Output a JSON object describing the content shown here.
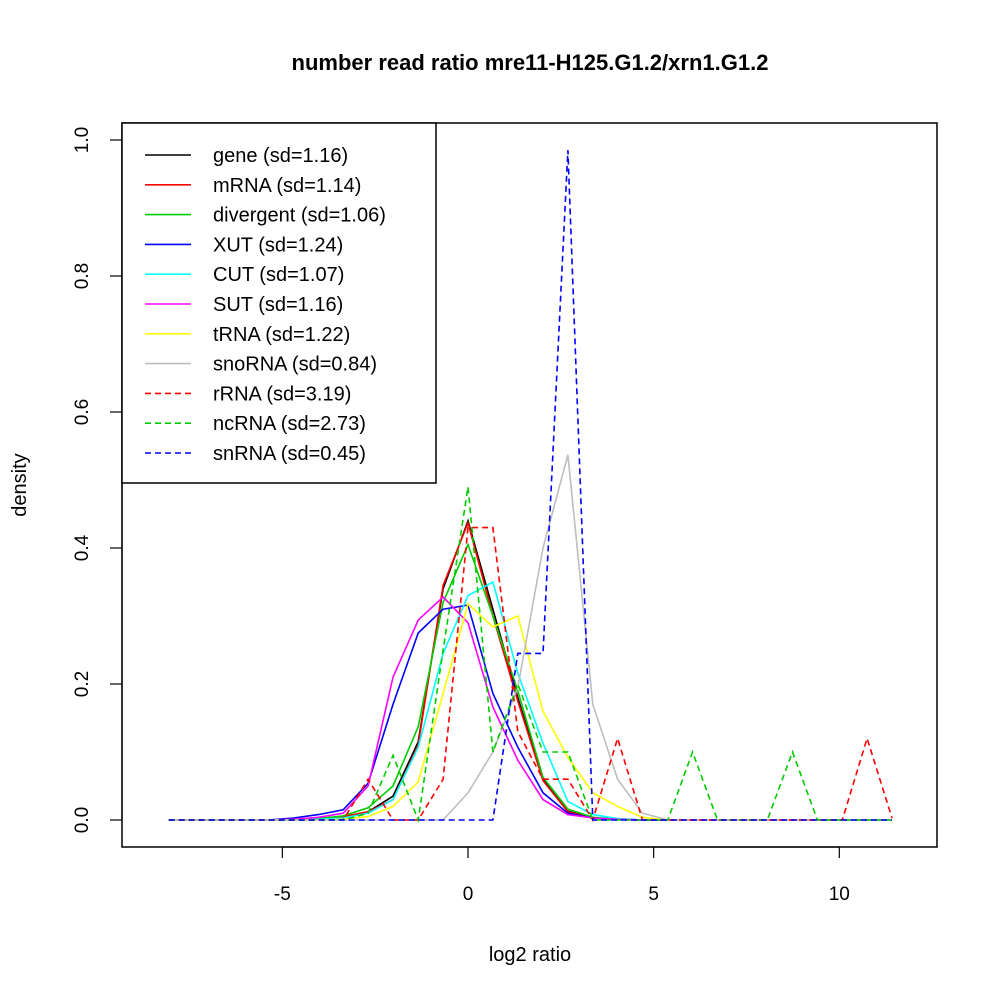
{
  "chart_data": {
    "type": "line",
    "title": "number read ratio mre11-H125.G1.2/xrn1.G1.2",
    "xlabel": "log2 ratio",
    "ylabel": "density",
    "xlim": [
      -8.5,
      13.5
    ],
    "ylim": [
      -0.04,
      1.04
    ],
    "xticks": [
      -5,
      0,
      5,
      10
    ],
    "xtick_labels": [
      "-5",
      "0",
      "5",
      "10"
    ],
    "yticks": [
      0,
      0.2,
      0.4,
      0.6,
      0.8,
      1.0
    ],
    "ytick_labels": [
      "0.0",
      "0.2",
      "0.4",
      "0.6",
      "0.8",
      "1.0"
    ],
    "legend_position": "top-left",
    "x": [
      -8.06,
      -7.39,
      -6.72,
      -6.05,
      -5.38,
      -4.7,
      -4.03,
      -3.36,
      -2.69,
      -2.02,
      -1.34,
      -0.67,
      0,
      0.67,
      1.34,
      2.02,
      2.69,
      3.36,
      4.03,
      4.7,
      5.38,
      6.05,
      6.72,
      7.39,
      8.06,
      8.74,
      9.41,
      10.08,
      10.75,
      11.42
    ],
    "series": [
      {
        "name": "gene (sd=1.16)",
        "color": "#000000",
        "dash": false,
        "values": [
          0,
          0,
          0,
          0,
          0,
          0,
          0.002,
          0.005,
          0.012,
          0.035,
          0.115,
          0.34,
          0.44,
          0.31,
          0.18,
          0.06,
          0.013,
          0.003,
          0.001,
          0,
          0,
          0,
          0,
          0,
          0,
          0,
          0,
          0,
          0,
          0
        ]
      },
      {
        "name": "mRNA (sd=1.14)",
        "color": "#ff0000",
        "dash": false,
        "values": [
          0,
          0,
          0,
          0,
          0,
          0,
          0.002,
          0.005,
          0.012,
          0.03,
          0.11,
          0.345,
          0.437,
          0.3,
          0.175,
          0.058,
          0.012,
          0.003,
          0.001,
          0,
          0,
          0,
          0,
          0,
          0,
          0,
          0,
          0,
          0,
          0
        ]
      },
      {
        "name": "divergent (sd=1.06)",
        "color": "#00cd00",
        "dash": false,
        "values": [
          0,
          0,
          0,
          0,
          0,
          0,
          0.002,
          0.006,
          0.018,
          0.05,
          0.137,
          0.32,
          0.405,
          0.3,
          0.19,
          0.063,
          0.016,
          0.004,
          0.001,
          0,
          0,
          0,
          0,
          0,
          0,
          0,
          0,
          0,
          0,
          0
        ]
      },
      {
        "name": "XUT (sd=1.24)",
        "color": "#0000ff",
        "dash": false,
        "values": [
          0,
          0,
          0,
          0,
          0,
          0.003,
          0.008,
          0.015,
          0.054,
          0.17,
          0.275,
          0.31,
          0.316,
          0.186,
          0.107,
          0.04,
          0.01,
          0.003,
          0.001,
          0,
          0,
          0,
          0,
          0,
          0,
          0,
          0,
          0,
          0,
          0
        ]
      },
      {
        "name": "CUT (sd=1.07)",
        "color": "#00ffff",
        "dash": false,
        "values": [
          0,
          0,
          0,
          0,
          0,
          0,
          0.001,
          0.003,
          0.01,
          0.03,
          0.107,
          0.245,
          0.33,
          0.35,
          0.216,
          0.113,
          0.027,
          0.008,
          0.002,
          0,
          0,
          0,
          0,
          0,
          0,
          0,
          0,
          0,
          0,
          0
        ]
      },
      {
        "name": "SUT (sd=1.16)",
        "color": "#ff00ff",
        "dash": false,
        "values": [
          0,
          0,
          0,
          0,
          0,
          0.001,
          0.004,
          0.01,
          0.05,
          0.21,
          0.294,
          0.328,
          0.29,
          0.166,
          0.088,
          0.03,
          0.008,
          0.003,
          0.001,
          0,
          0,
          0,
          0,
          0,
          0,
          0,
          0,
          0,
          0,
          0
        ]
      },
      {
        "name": "tRNA (sd=1.22)",
        "color": "#ffff00",
        "dash": false,
        "values": [
          0,
          0,
          0,
          0,
          0,
          0,
          0,
          0.001,
          0.005,
          0.02,
          0.056,
          0.186,
          0.318,
          0.284,
          0.3,
          0.16,
          0.092,
          0.04,
          0.02,
          0.004,
          0,
          0,
          0,
          0,
          0,
          0,
          0,
          0,
          0,
          0
        ]
      },
      {
        "name": "snoRNA (sd=0.84)",
        "color": "#bebebe",
        "dash": false,
        "values": [
          0,
          0,
          0,
          0,
          0,
          0,
          0,
          0,
          0,
          0,
          0,
          0,
          0.04,
          0.1,
          0.195,
          0.4,
          0.537,
          0.17,
          0.06,
          0.01,
          0,
          0,
          0,
          0,
          0,
          0,
          0,
          0,
          0,
          0
        ]
      },
      {
        "name": "rRNA (sd=3.19)",
        "color": "#ff0000",
        "dash": true,
        "values": [
          0,
          0,
          0,
          0,
          0,
          0,
          0,
          0,
          0.06,
          0,
          0,
          0.06,
          0.43,
          0.43,
          0.13,
          0.06,
          0.06,
          0,
          0.12,
          0,
          0,
          0,
          0,
          0,
          0,
          0,
          0,
          0,
          0.12,
          0.003
        ]
      },
      {
        "name": "ncRNA (sd=2.73)",
        "color": "#00cd00",
        "dash": true,
        "values": [
          0,
          0,
          0,
          0,
          0,
          0,
          0,
          0,
          0.01,
          0.095,
          0,
          0.25,
          0.49,
          0.1,
          0.2,
          0.1,
          0.1,
          0,
          0,
          0,
          0,
          0.1,
          0,
          0,
          0,
          0.1,
          0,
          0,
          0,
          0
        ]
      },
      {
        "name": "snRNA (sd=0.45)",
        "color": "#0000ff",
        "dash": true,
        "values": [
          0,
          0,
          0,
          0,
          0,
          0,
          0,
          0,
          0,
          0,
          0,
          0,
          0,
          0,
          0.245,
          0.245,
          0.985,
          0,
          0,
          0,
          0,
          0,
          0,
          0,
          0,
          0,
          0,
          0,
          0,
          0
        ]
      }
    ]
  }
}
